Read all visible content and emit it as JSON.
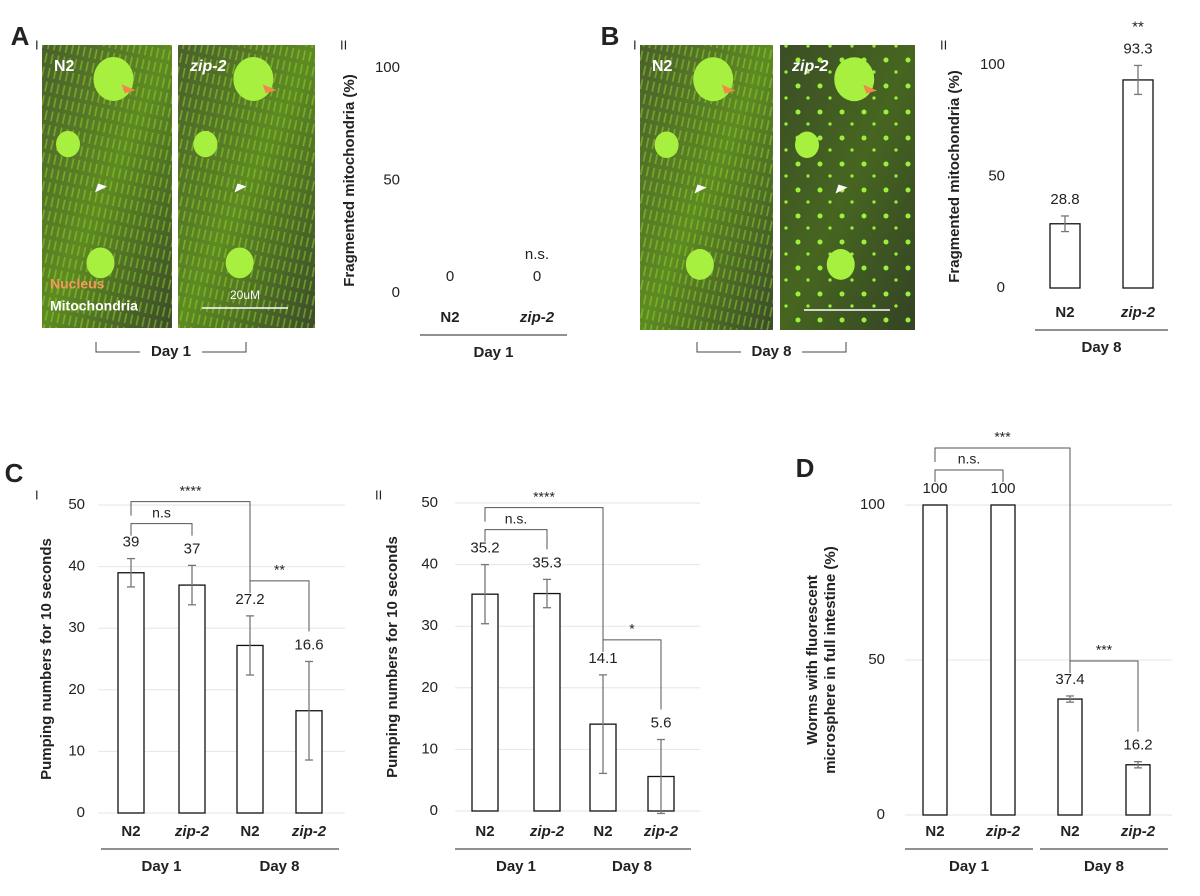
{
  "panel_labels": [
    "A",
    "B",
    "C",
    "D"
  ],
  "micrographs": [
    {
      "sublabel": "I",
      "labels": [
        "N2",
        "zip-2"
      ],
      "legend": [
        "Nucleus",
        "Mitochondria"
      ],
      "scale_bar": "20uM",
      "group": "Day 1"
    },
    {
      "sublabel": "I",
      "labels": [
        "N2",
        "zip-2"
      ],
      "group": "Day 8"
    }
  ],
  "chart_data": [
    {
      "type": "bar",
      "sublabel": "II",
      "ylabel": [
        "Fragmented mitochondria (%)"
      ],
      "categories": [
        "N2",
        "zip-2"
      ],
      "groups": [
        "Day 1"
      ],
      "values": [
        0,
        0
      ],
      "errors": [
        0,
        0
      ],
      "ylim": [
        0,
        100
      ],
      "yticks": [
        0,
        50,
        100
      ],
      "grid": false,
      "color": "#ffffff",
      "annotation": {
        "index": 1,
        "text": "n.s."
      }
    },
    {
      "type": "bar",
      "sublabel": "II",
      "ylabel": [
        "Fragmented mitochondria (%)"
      ],
      "categories": [
        "N2",
        "zip-2"
      ],
      "groups": [
        "Day 8"
      ],
      "values": [
        28.8,
        93.3
      ],
      "errors": [
        3.5,
        6.5
      ],
      "ylim": [
        0,
        100
      ],
      "yticks": [
        0,
        50,
        100
      ],
      "grid": false,
      "color": "#ffffff",
      "annotation": {
        "index": 1,
        "text": "**"
      }
    },
    {
      "type": "bar",
      "sublabel": "I",
      "ylabel": [
        "Pumping numbers for 10 seconds"
      ],
      "categories": [
        "N2",
        "zip-2",
        "N2",
        "zip-2"
      ],
      "groups": [
        "Day 1",
        "Day 8"
      ],
      "values": [
        39,
        37,
        27.2,
        16.6
      ],
      "errors": [
        2.3,
        3.2,
        4.8,
        8
      ],
      "ylim": [
        0,
        50
      ],
      "yticks": [
        0,
        10,
        20,
        30,
        40,
        50
      ],
      "grid": true,
      "color": "#ffffff",
      "brackets": [
        {
          "from": 0,
          "to": 1,
          "label": "n.s"
        },
        {
          "from": 0,
          "to": 2,
          "label": "****"
        },
        {
          "from": 2,
          "to": 3,
          "label": "**"
        }
      ]
    },
    {
      "type": "bar",
      "sublabel": "II",
      "ylabel": [
        "Pumping numbers for 10 seconds"
      ],
      "categories": [
        "N2",
        "zip-2",
        "N2",
        "zip-2"
      ],
      "groups": [
        "Day 1",
        "Day 8"
      ],
      "values": [
        35.2,
        35.3,
        14.1,
        5.6
      ],
      "errors": [
        4.8,
        2.3,
        8,
        6
      ],
      "ylim": [
        0,
        50
      ],
      "yticks": [
        0,
        10,
        20,
        30,
        40,
        50
      ],
      "grid": true,
      "color": "#ffffff",
      "brackets": [
        {
          "from": 0,
          "to": 1,
          "label": "n.s."
        },
        {
          "from": 0,
          "to": 2,
          "label": "****"
        },
        {
          "from": 2,
          "to": 3,
          "label": "*"
        }
      ]
    },
    {
      "type": "bar",
      "ylabel": [
        "Worms with fluorescent",
        "microsphere in full intestine (%)"
      ],
      "categories": [
        "N2",
        "zip-2",
        "N2",
        "zip-2"
      ],
      "groups": [
        "Day 1",
        "Day 8"
      ],
      "values": [
        100,
        100,
        37.4,
        16.2
      ],
      "errors": [
        0,
        0,
        1,
        1
      ],
      "ylim": [
        0,
        100
      ],
      "yticks": [
        0,
        50,
        100
      ],
      "grid": true,
      "color": "#ffffff",
      "brackets": [
        {
          "from": 0,
          "to": 1,
          "label": "n.s."
        },
        {
          "from": 0,
          "to": 2,
          "label": "***"
        },
        {
          "from": 2,
          "to": 3,
          "label": "***"
        }
      ]
    }
  ]
}
